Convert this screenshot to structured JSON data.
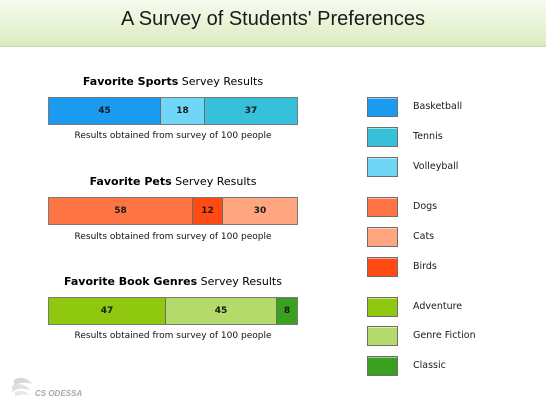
{
  "header": {
    "title": "A Survey of Students' Preferences"
  },
  "charts": [
    {
      "title_bold": "Favorite Sports",
      "title_rest": " Servey Results",
      "note": "Results obtained from survey of 100 people",
      "segments": [
        {
          "label": "45",
          "value": 45,
          "color": "#1a9bf0"
        },
        {
          "label": "18",
          "value": 18,
          "color": "#6fd6f6"
        },
        {
          "label": "37",
          "value": 37,
          "color": "#36c0da"
        }
      ]
    },
    {
      "title_bold": "Favorite Pets",
      "title_rest": " Servey Results",
      "note": "Results obtained from survey of 100 people",
      "segments": [
        {
          "label": "58",
          "value": 58,
          "color": "#ff7444"
        },
        {
          "label": "12",
          "value": 12,
          "color": "#ff4a14"
        },
        {
          "label": "30",
          "value": 30,
          "color": "#ffa680"
        }
      ]
    },
    {
      "title_bold": "Favorite Book Genres",
      "title_rest": " Servey Results",
      "note": "Results obtained from survey of 100 people",
      "segments": [
        {
          "label": "47",
          "value": 47,
          "color": "#8fc80e"
        },
        {
          "label": "45",
          "value": 45,
          "color": "#b3da6a"
        },
        {
          "label": "8",
          "value": 8,
          "color": "#3aa020"
        }
      ]
    }
  ],
  "legend": [
    {
      "label": "Basketball",
      "color": "#1a9bf0"
    },
    {
      "label": "Tennis",
      "color": "#36c0da"
    },
    {
      "label": "Volleyball",
      "color": "#6fd6f6"
    },
    {
      "label": "Dogs",
      "color": "#ff7444"
    },
    {
      "label": "Cats",
      "color": "#ffa680"
    },
    {
      "label": "Birds",
      "color": "#ff4a14"
    },
    {
      "label": "Adventure",
      "color": "#8fc80e"
    },
    {
      "label": "Genre Fiction",
      "color": "#b3da6a"
    },
    {
      "label": "Classic",
      "color": "#3aa020"
    }
  ],
  "logo": {
    "text": "CS ODESSA"
  },
  "chart_data": [
    {
      "type": "bar",
      "title": "Favorite Sports Servey Results",
      "categories": [
        "Basketball",
        "Volleyball",
        "Tennis"
      ],
      "values": [
        45,
        18,
        37
      ]
    },
    {
      "type": "bar",
      "title": "Favorite Pets Servey Results",
      "categories": [
        "Dogs",
        "Birds",
        "Cats"
      ],
      "values": [
        58,
        12,
        30
      ]
    },
    {
      "type": "bar",
      "title": "Favorite Book Genres Servey Results",
      "categories": [
        "Adventure",
        "Genre Fiction",
        "Classic"
      ],
      "values": [
        47,
        45,
        8
      ]
    }
  ]
}
